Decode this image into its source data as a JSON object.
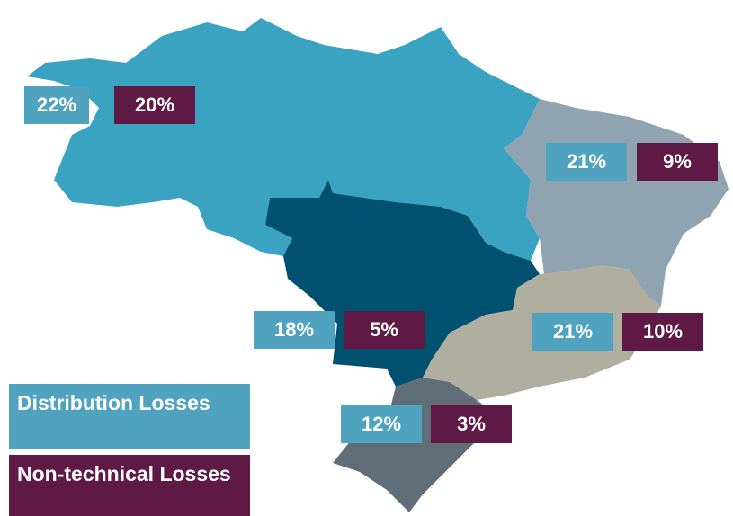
{
  "regions": [
    {
      "distribution": "22%",
      "non_technical": "20%"
    },
    {
      "distribution": "21%",
      "non_technical": "9%"
    },
    {
      "distribution": "18%",
      "non_technical": "5%"
    },
    {
      "distribution": "21%",
      "non_technical": "10%"
    },
    {
      "distribution": "12%",
      "non_technical": "3%"
    }
  ],
  "legend": {
    "distribution": "Distribution Losses",
    "non_technical": "Non-technical Losses"
  }
}
